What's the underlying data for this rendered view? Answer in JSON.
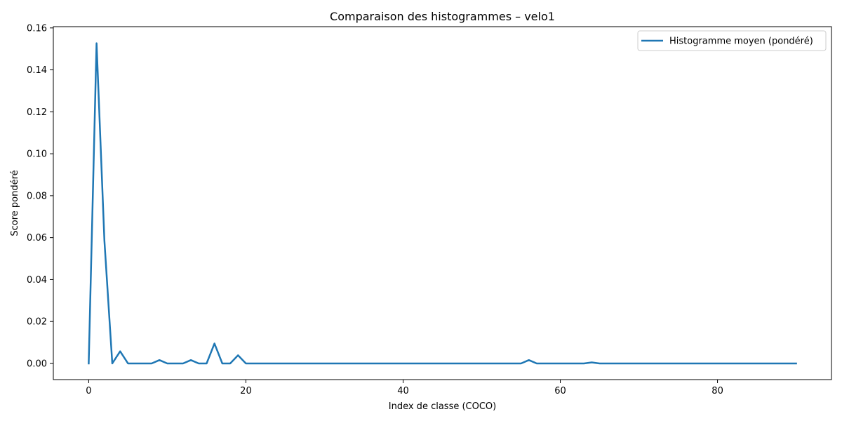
{
  "chart_data": {
    "type": "line",
    "title": "Comparaison des histogrammes – velo1",
    "xlabel": "Index de classe (COCO)",
    "ylabel": "Score pondéré",
    "xlim": [
      -4.5,
      94.5
    ],
    "ylim": [
      -0.0077,
      0.1606
    ],
    "xticks": [
      0,
      20,
      40,
      60,
      80
    ],
    "yticks": [
      0.0,
      0.02,
      0.04,
      0.06,
      0.08,
      0.1,
      0.12,
      0.14,
      0.16
    ],
    "ytick_format_decimals": 2,
    "grid": false,
    "legend_position": "top-right",
    "series": [
      {
        "name": "Histogramme moyen (pondéré)",
        "color": "#1f77b4",
        "x": [
          0,
          1,
          2,
          3,
          4,
          5,
          6,
          7,
          8,
          9,
          10,
          11,
          12,
          13,
          14,
          15,
          16,
          17,
          18,
          19,
          20,
          21,
          22,
          23,
          24,
          25,
          26,
          27,
          28,
          29,
          30,
          31,
          32,
          33,
          34,
          35,
          36,
          37,
          38,
          39,
          40,
          41,
          42,
          43,
          44,
          45,
          46,
          47,
          48,
          49,
          50,
          51,
          52,
          53,
          54,
          55,
          56,
          57,
          58,
          59,
          60,
          61,
          62,
          63,
          64,
          65,
          66,
          67,
          68,
          69,
          70,
          71,
          72,
          73,
          74,
          75,
          76,
          77,
          78,
          79,
          80,
          81,
          82,
          83,
          84,
          85,
          86,
          87,
          88,
          89,
          90
        ],
        "values": [
          0.0,
          0.1527,
          0.0585,
          0.0,
          0.0058,
          0.0,
          0.0,
          0.0,
          0.0,
          0.0016,
          0.0,
          0.0,
          0.0,
          0.0016,
          0.0,
          0.0,
          0.0095,
          0.0,
          0.0,
          0.0039,
          0.0,
          0.0,
          0.0,
          0.0,
          0.0,
          0.0,
          0.0,
          0.0,
          0.0,
          0.0,
          0.0,
          0.0,
          0.0,
          0.0,
          0.0,
          0.0,
          0.0,
          0.0,
          0.0,
          0.0,
          0.0,
          0.0,
          0.0,
          0.0,
          0.0,
          0.0,
          0.0,
          0.0,
          0.0,
          0.0,
          0.0,
          0.0,
          0.0,
          0.0,
          0.0,
          0.0,
          0.0016,
          0.0,
          0.0,
          0.0,
          0.0,
          0.0,
          0.0,
          0.0,
          0.0005,
          0.0,
          0.0,
          0.0,
          0.0,
          0.0,
          0.0,
          0.0,
          0.0,
          0.0,
          0.0,
          0.0,
          0.0,
          0.0,
          0.0,
          0.0,
          0.0,
          0.0,
          0.0,
          0.0,
          0.0,
          0.0,
          0.0,
          0.0,
          0.0,
          0.0,
          0.0
        ]
      }
    ]
  }
}
